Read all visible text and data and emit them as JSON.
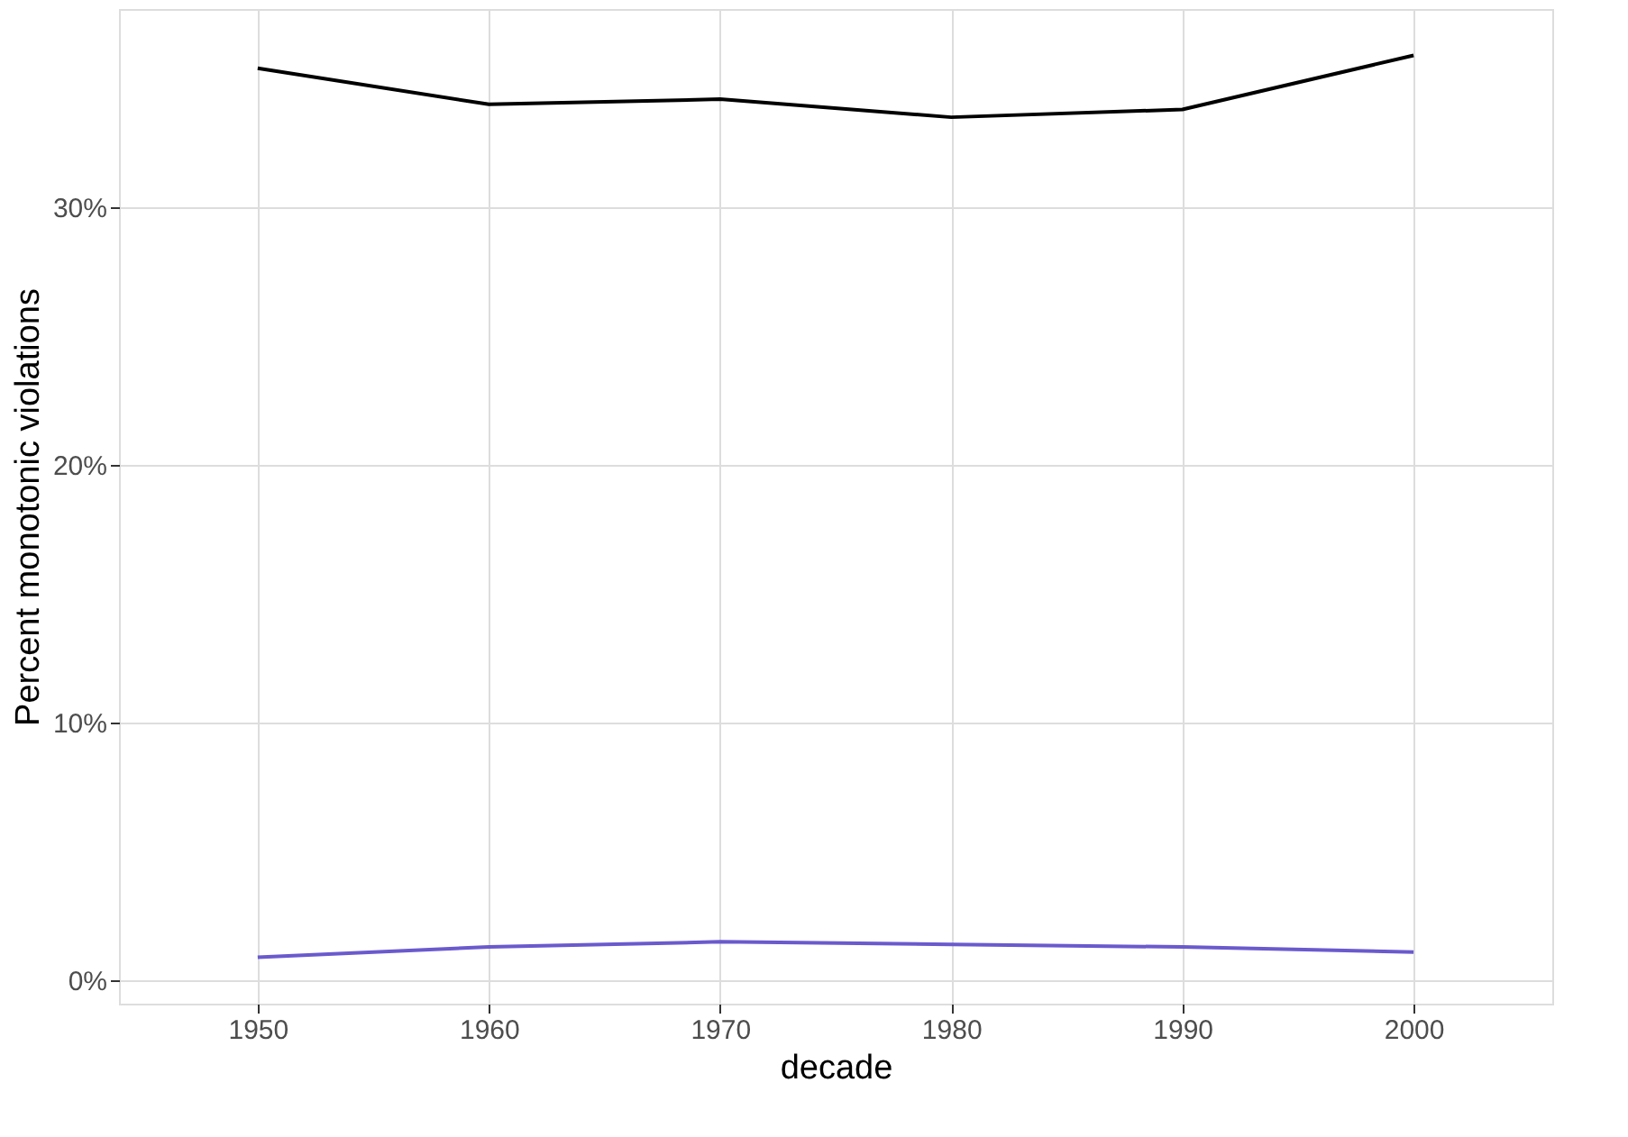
{
  "chart_data": {
    "type": "line",
    "xlabel": "decade",
    "ylabel": "Percent monotonic violations",
    "x": [
      1950,
      1960,
      1970,
      1980,
      1990,
      2000
    ],
    "series": [
      {
        "color": "#000000",
        "values": [
          35.4,
          34.0,
          34.2,
          33.5,
          33.8,
          35.9
        ]
      },
      {
        "color": "#6a5acd",
        "values": [
          0.9,
          1.3,
          1.5,
          1.4,
          1.3,
          1.1
        ]
      }
    ],
    "xlim": [
      1944,
      2006
    ],
    "xticks": [
      1950,
      1960,
      1970,
      1980,
      1990,
      2000
    ],
    "ylim": [
      -0.9,
      37.7
    ],
    "yticks": [
      {
        "value": 0,
        "label": "0%"
      },
      {
        "value": 10,
        "label": "10%"
      },
      {
        "value": 20,
        "label": "20%"
      },
      {
        "value": 30,
        "label": "30%"
      }
    ],
    "grid": true,
    "legend": false,
    "marker": "none",
    "line_style": "solid"
  }
}
